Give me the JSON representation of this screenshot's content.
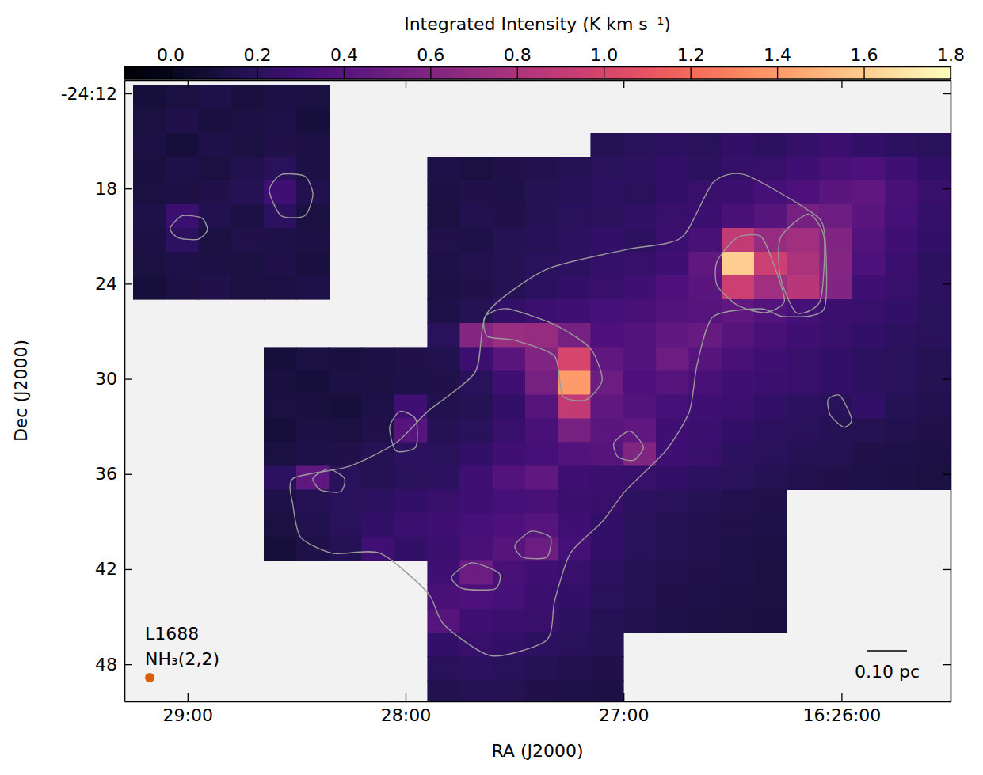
{
  "chart_data": {
    "type": "heatmap",
    "x_label": "RA (J2000)",
    "y_label": "Dec (J2000)",
    "xlim": [
      29.29,
      25.5
    ],
    "xticks": [
      {
        "value": 29,
        "label": "29:00"
      },
      {
        "value": 28,
        "label": "28:00"
      },
      {
        "value": 27,
        "label": "27:00"
      },
      {
        "value": 26,
        "label": "16:26:00"
      }
    ],
    "ylim": [
      11.15,
      50.34
    ],
    "yticks": [
      {
        "value": 12,
        "label": "-24:12"
      },
      18,
      24,
      30,
      36,
      42,
      48
    ],
    "color": "magma",
    "x": [
      29.175,
      29.025,
      28.875,
      28.725,
      28.575,
      28.425,
      28.275,
      28.125,
      27.975,
      27.825,
      27.675,
      27.525,
      27.375,
      27.225,
      27.075,
      26.925,
      26.775,
      26.625,
      26.475,
      26.325,
      26.175,
      26.025,
      25.875,
      25.725,
      25.575
    ],
    "y": [
      12.25,
      13.75,
      15.25,
      16.75,
      18.25,
      19.75,
      21.25,
      22.75,
      24.25,
      25.75,
      27.25,
      28.75,
      30.25,
      31.75,
      33.25,
      34.75,
      36.25,
      37.75,
      39.25,
      40.75,
      42.25,
      43.75,
      45.25,
      46.75,
      48.25,
      49.75
    ],
    "z": [
      [
        0.1,
        0.12,
        0.14,
        0.11,
        0.13,
        0.12,
        null,
        null,
        null,
        null,
        null,
        null,
        null,
        null,
        null,
        null,
        null,
        null,
        null,
        null,
        null,
        null,
        null,
        null,
        null
      ],
      [
        0.12,
        0.15,
        0.11,
        0.13,
        0.14,
        0.1,
        null,
        null,
        null,
        null,
        null,
        null,
        null,
        null,
        null,
        null,
        null,
        null,
        null,
        null,
        null,
        null,
        null,
        null,
        null
      ],
      [
        0.13,
        0.1,
        0.14,
        0.12,
        0.15,
        0.13,
        null,
        null,
        null,
        null,
        null,
        null,
        null,
        null,
        0.18,
        0.2,
        0.22,
        0.2,
        0.24,
        0.22,
        0.25,
        0.28,
        0.24,
        0.22,
        0.2
      ],
      [
        0.11,
        0.14,
        0.12,
        0.16,
        0.2,
        0.13,
        null,
        null,
        null,
        0.14,
        0.12,
        0.15,
        0.16,
        0.18,
        0.2,
        0.22,
        0.24,
        0.22,
        0.25,
        0.26,
        0.3,
        0.34,
        0.36,
        0.3,
        0.24
      ],
      [
        0.12,
        0.13,
        0.15,
        0.18,
        0.3,
        0.16,
        null,
        null,
        null,
        0.13,
        0.15,
        0.14,
        0.17,
        0.19,
        0.22,
        0.2,
        0.24,
        0.26,
        0.28,
        0.32,
        0.36,
        0.42,
        0.45,
        0.34,
        0.26
      ],
      [
        0.14,
        0.28,
        0.16,
        0.13,
        0.22,
        0.12,
        null,
        null,
        null,
        0.12,
        0.16,
        0.15,
        0.18,
        0.2,
        0.21,
        0.23,
        0.26,
        0.28,
        0.34,
        0.4,
        0.55,
        0.5,
        0.42,
        0.32,
        0.25
      ],
      [
        0.13,
        0.22,
        0.12,
        0.15,
        0.14,
        0.13,
        null,
        null,
        null,
        0.15,
        0.14,
        0.18,
        0.19,
        0.22,
        0.24,
        0.22,
        0.28,
        0.34,
        0.9,
        0.7,
        0.75,
        0.6,
        0.38,
        0.3,
        0.24
      ],
      [
        0.12,
        0.14,
        0.13,
        0.12,
        0.15,
        0.11,
        null,
        null,
        null,
        0.14,
        0.16,
        0.17,
        0.2,
        0.22,
        0.25,
        0.26,
        0.3,
        0.45,
        1.6,
        0.95,
        0.8,
        0.62,
        0.35,
        0.28,
        0.22
      ],
      [
        0.1,
        0.13,
        0.15,
        0.12,
        0.13,
        0.14,
        null,
        null,
        null,
        0.13,
        0.15,
        0.18,
        0.22,
        0.24,
        0.26,
        0.3,
        0.36,
        0.42,
        0.95,
        0.75,
        0.85,
        0.6,
        0.3,
        0.26,
        0.22
      ],
      [
        null,
        null,
        null,
        null,
        null,
        null,
        null,
        null,
        null,
        0.14,
        0.18,
        0.24,
        0.28,
        0.3,
        0.32,
        0.34,
        0.38,
        0.4,
        0.45,
        0.38,
        0.32,
        0.28,
        0.26,
        0.24,
        0.2
      ],
      [
        null,
        null,
        null,
        null,
        null,
        null,
        null,
        null,
        null,
        0.2,
        0.62,
        0.72,
        0.7,
        0.55,
        0.36,
        0.38,
        0.45,
        0.48,
        0.4,
        0.34,
        0.3,
        0.26,
        0.24,
        0.22,
        0.2
      ],
      [
        null,
        null,
        null,
        null,
        0.1,
        0.12,
        0.11,
        0.13,
        0.15,
        0.16,
        0.28,
        0.42,
        0.6,
        1.0,
        0.45,
        0.38,
        0.5,
        0.4,
        0.34,
        0.3,
        0.26,
        0.24,
        0.22,
        0.2,
        0.18
      ],
      [
        null,
        null,
        null,
        null,
        0.11,
        0.1,
        0.13,
        0.12,
        0.14,
        0.15,
        0.2,
        0.3,
        0.55,
        1.4,
        0.5,
        0.36,
        0.4,
        0.34,
        0.3,
        0.28,
        0.26,
        0.24,
        0.22,
        0.2,
        0.17
      ],
      [
        null,
        null,
        null,
        null,
        0.12,
        0.11,
        0.1,
        0.14,
        0.3,
        0.16,
        0.18,
        0.24,
        0.4,
        0.9,
        0.45,
        0.38,
        0.32,
        0.3,
        0.28,
        0.24,
        0.22,
        0.2,
        0.24,
        0.18,
        0.16
      ],
      [
        null,
        null,
        null,
        null,
        0.1,
        0.13,
        0.12,
        0.15,
        0.4,
        0.18,
        0.2,
        0.26,
        0.34,
        0.55,
        0.42,
        0.45,
        0.3,
        0.28,
        0.24,
        0.22,
        0.2,
        0.18,
        0.17,
        0.16,
        0.15
      ],
      [
        null,
        null,
        null,
        null,
        0.12,
        0.14,
        0.15,
        0.18,
        0.22,
        0.2,
        0.24,
        0.3,
        0.32,
        0.38,
        0.4,
        0.6,
        0.3,
        0.26,
        0.22,
        0.2,
        0.18,
        0.17,
        0.15,
        0.14,
        0.13
      ],
      [
        null,
        null,
        null,
        null,
        0.22,
        0.45,
        0.2,
        0.18,
        0.2,
        0.22,
        0.3,
        0.38,
        0.45,
        0.3,
        0.28,
        0.26,
        0.24,
        0.22,
        0.2,
        0.18,
        0.16,
        0.15,
        0.14,
        0.13,
        0.12
      ],
      [
        null,
        null,
        null,
        null,
        0.14,
        0.18,
        0.2,
        0.22,
        0.24,
        0.26,
        0.3,
        0.32,
        0.34,
        0.28,
        0.26,
        0.22,
        0.2,
        0.18,
        0.16,
        0.15,
        null,
        null,
        null,
        null,
        null
      ],
      [
        null,
        null,
        null,
        null,
        0.12,
        0.16,
        0.2,
        0.24,
        0.28,
        0.3,
        0.32,
        0.36,
        0.4,
        0.3,
        0.24,
        0.2,
        0.18,
        0.16,
        0.15,
        0.14,
        null,
        null,
        null,
        null,
        null
      ],
      [
        null,
        null,
        null,
        null,
        0.1,
        0.14,
        0.18,
        0.3,
        0.24,
        0.28,
        0.34,
        0.4,
        0.5,
        0.32,
        0.24,
        0.2,
        0.18,
        0.16,
        0.14,
        0.13,
        null,
        null,
        null,
        null,
        null
      ],
      [
        null,
        null,
        null,
        null,
        null,
        null,
        null,
        null,
        null,
        0.3,
        0.5,
        0.34,
        0.3,
        0.26,
        0.22,
        0.18,
        0.16,
        0.15,
        0.14,
        0.12,
        null,
        null,
        null,
        null,
        null
      ],
      [
        null,
        null,
        null,
        null,
        null,
        null,
        null,
        null,
        null,
        0.34,
        0.36,
        0.32,
        0.28,
        0.24,
        0.2,
        0.17,
        0.15,
        0.14,
        0.13,
        0.12,
        null,
        null,
        null,
        null,
        null
      ],
      [
        null,
        null,
        null,
        null,
        null,
        null,
        null,
        null,
        null,
        0.4,
        0.3,
        0.28,
        0.26,
        0.22,
        0.18,
        0.16,
        0.14,
        0.13,
        0.12,
        0.11,
        null,
        null,
        null,
        null,
        null
      ],
      [
        null,
        null,
        null,
        null,
        null,
        null,
        null,
        null,
        null,
        0.24,
        0.26,
        0.24,
        0.22,
        0.2,
        0.18,
        null,
        null,
        null,
        null,
        null,
        null,
        null,
        null,
        null,
        null
      ],
      [
        null,
        null,
        null,
        null,
        null,
        null,
        null,
        null,
        null,
        0.2,
        0.22,
        0.2,
        0.18,
        0.16,
        0.15,
        null,
        null,
        null,
        null,
        null,
        null,
        null,
        null,
        null,
        null
      ],
      [
        null,
        null,
        null,
        null,
        null,
        null,
        null,
        null,
        null,
        0.16,
        0.18,
        0.17,
        0.15,
        0.14,
        0.13,
        null,
        null,
        null,
        null,
        null,
        null,
        null,
        null,
        null,
        null
      ]
    ],
    "colorbar": {
      "label": "Integrated Intensity (K km s⁻¹)",
      "range": [
        -0.106,
        1.8
      ],
      "ticks": [
        {
          "value": 0,
          "label": "0.0"
        },
        0.2,
        0.4,
        0.6,
        0.8,
        {
          "value": 1,
          "label": "1.0"
        },
        1.2,
        1.4,
        1.6,
        1.8
      ]
    },
    "contours": [
      {
        "x": [
          28.625,
          28.571,
          28.462,
          28.425,
          28.462,
          28.571
        ],
        "y": [
          18.12,
          17.12,
          17.22,
          18.37,
          19.71,
          19.71
        ]
      },
      {
        "x": [
          29.08,
          29.025,
          28.935,
          28.909,
          28.953,
          29.044
        ],
        "y": [
          20.51,
          19.71,
          19.86,
          20.61,
          21.2,
          21.1
        ]
      },
      {
        "x": [
          28.516,
          28.262,
          28.044,
          27.898,
          27.68,
          27.625,
          27.353,
          26.989,
          26.735,
          26.589,
          26.444,
          26.153,
          26.08,
          26.08,
          26.262,
          26.371,
          26.589,
          26.662,
          26.698,
          26.807,
          26.989,
          27.098,
          27.244,
          27.316,
          27.353,
          27.607,
          27.825,
          27.898,
          28.116,
          28.335,
          28.48,
          28.516
        ],
        "y": [
          36.28,
          35.53,
          34.04,
          32.05,
          29.56,
          25.83,
          23.09,
          21.85,
          21.1,
          17.62,
          17.12,
          19.36,
          20.61,
          25.58,
          26.08,
          25.58,
          26.08,
          29.06,
          32.05,
          34.54,
          37.03,
          39.01,
          41.0,
          43.99,
          46.48,
          47.47,
          45.48,
          43.49,
          41.0,
          41.0,
          40.01,
          38.02
        ]
      },
      {
        "x": [
          27.636,
          27.535,
          27.316,
          27.153,
          27.098,
          27.171,
          27.28,
          27.316,
          27.498,
          27.625
        ],
        "y": [
          26.08,
          25.58,
          26.58,
          28.07,
          30.06,
          31.31,
          31.06,
          28.57,
          27.57,
          27.32
        ]
      },
      {
        "x": [
          26.571,
          26.48,
          26.371,
          26.316,
          26.262,
          26.353,
          26.48,
          26.571
        ],
        "y": [
          22.6,
          21.1,
          21.0,
          22.6,
          25.08,
          25.83,
          25.33,
          24.09
        ]
      },
      {
        "x": [
          26.28,
          26.153,
          26.08,
          26.098,
          26.207,
          26.28
        ],
        "y": [
          21.1,
          19.61,
          21.1,
          25.08,
          25.83,
          23.59
        ]
      },
      {
        "x": [
          26.062,
          26.007,
          25.953,
          25.989,
          26.051
        ],
        "y": [
          31.31,
          31.06,
          32.55,
          33.05,
          32.3
        ]
      },
      {
        "x": [
          28.073,
          28.025,
          27.953,
          27.953,
          28.044
        ],
        "y": [
          33.04,
          32.05,
          32.55,
          34.29,
          34.54
        ]
      },
      {
        "x": [
          28.425,
          28.353,
          28.28,
          28.298,
          28.389
        ],
        "y": [
          36.28,
          35.68,
          36.28,
          37.12,
          37.02
        ]
      },
      {
        "x": [
          27.789,
          27.698,
          27.571,
          27.589,
          27.735
        ],
        "y": [
          42.5,
          41.6,
          42.25,
          43.24,
          43.24
        ]
      },
      {
        "x": [
          27.498,
          27.425,
          27.335,
          27.353,
          27.462
        ],
        "y": [
          40.51,
          39.61,
          40.01,
          41.25,
          41.25
        ]
      },
      {
        "x": [
          27.044,
          26.971,
          26.909,
          26.953,
          27.025
        ],
        "y": [
          34.04,
          33.29,
          34.29,
          35.13,
          34.93
        ]
      }
    ],
    "annotations": [
      "L1688",
      "NH₃(2,2)"
    ],
    "scalebar": {
      "label": "0.10 pc",
      "length": 2.5
    },
    "beam": {
      "diameter": 0.6
    }
  }
}
